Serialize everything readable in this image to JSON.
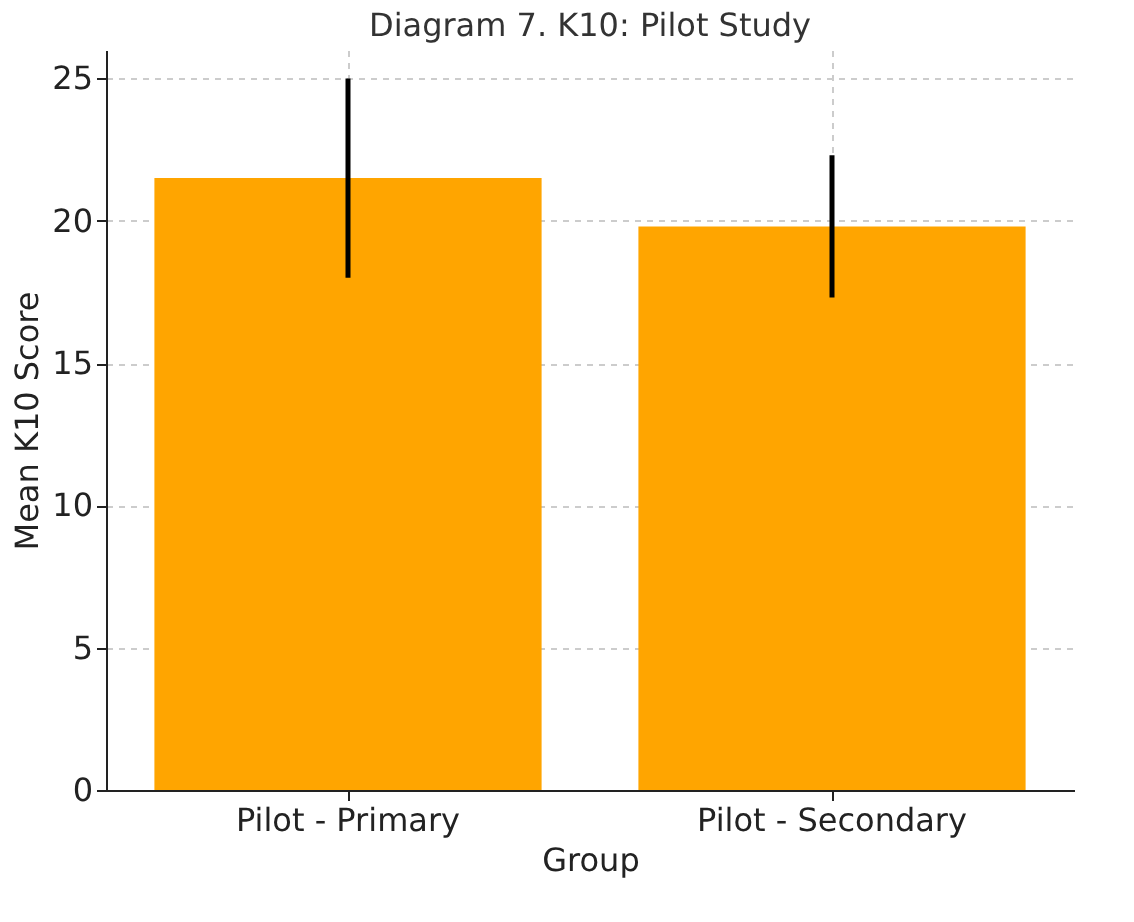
{
  "chart_data": {
    "type": "bar",
    "title": "Diagram 7. K10: Pilot Study",
    "xlabel": "Group",
    "ylabel": "Mean K10 Score",
    "categories": [
      "Pilot - Primary",
      "Pilot - Secondary"
    ],
    "values": [
      21.5,
      19.8
    ],
    "errors": [
      3.5,
      2.5
    ],
    "color": "#ffa500",
    "ylim": [
      0,
      26
    ],
    "yticks": [
      0,
      5,
      10,
      15,
      20,
      25
    ],
    "grid": true
  }
}
